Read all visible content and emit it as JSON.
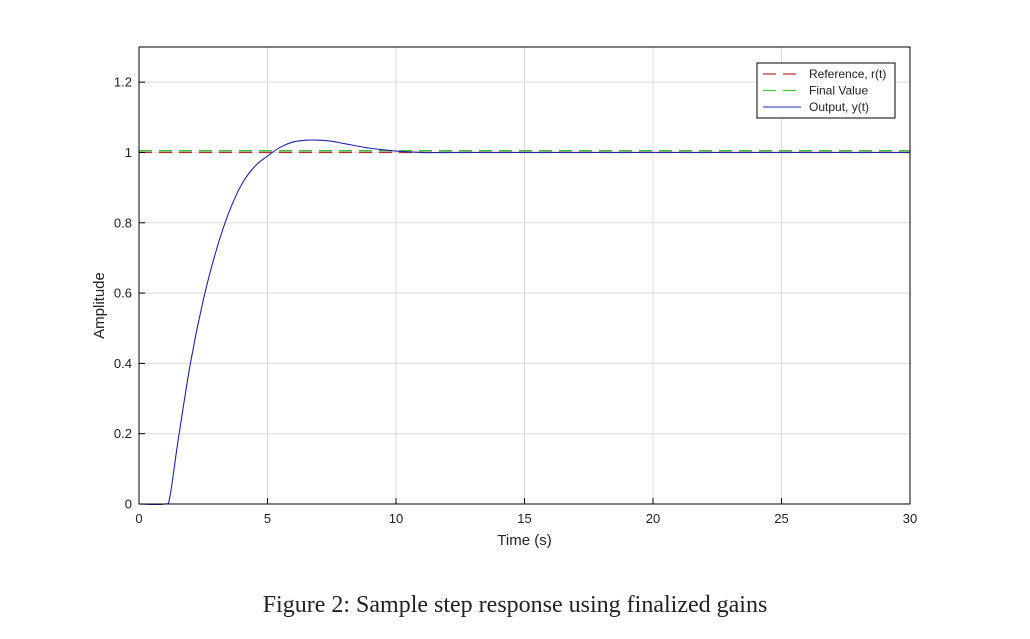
{
  "chart_data": {
    "type": "line",
    "xlabel": "Time (s)",
    "ylabel": "Amplitude",
    "xlim": [
      0,
      30
    ],
    "ylim": [
      0,
      1.3
    ],
    "xticks": [
      0,
      5,
      10,
      15,
      20,
      25,
      30
    ],
    "yticks": [
      0,
      0.2,
      0.4,
      0.6,
      0.8,
      1,
      1.2
    ],
    "xtick_labels": [
      "0",
      "5",
      "10",
      "15",
      "20",
      "25",
      "30"
    ],
    "ytick_labels": [
      "0",
      "0.2",
      "0.4",
      "0.6",
      "0.8",
      "1",
      "1.2"
    ],
    "grid": true,
    "legend_position": "top-right",
    "series": [
      {
        "name": "Reference, r(t)",
        "color": "#b03030",
        "style": "dashed",
        "x": [
          0,
          30
        ],
        "y": [
          1.0,
          1.0
        ]
      },
      {
        "name": "Final Value",
        "color": "#3cc43c",
        "style": "dashed",
        "x": [
          0,
          30
        ],
        "y": [
          1.005,
          1.005
        ]
      },
      {
        "name": "Output, y(t)",
        "color": "#2222aa",
        "style": "solid",
        "x": [
          0,
          1.0,
          1.2,
          1.5,
          2.0,
          2.5,
          3.0,
          3.5,
          4.0,
          4.5,
          5.0,
          5.5,
          6.0,
          6.5,
          7.0,
          7.5,
          8.0,
          9.0,
          10.0,
          11.0,
          12.0,
          15.0,
          20.0,
          25.0,
          30.0
        ],
        "y": [
          0,
          0,
          0.02,
          0.17,
          0.4,
          0.58,
          0.72,
          0.83,
          0.91,
          0.96,
          0.99,
          1.015,
          1.03,
          1.035,
          1.035,
          1.032,
          1.025,
          1.012,
          1.004,
          1.0,
          1.0,
          1.0,
          1.0,
          1.0,
          1.0
        ]
      }
    ]
  },
  "caption": "Figure 2: Sample step response using finalized gains"
}
